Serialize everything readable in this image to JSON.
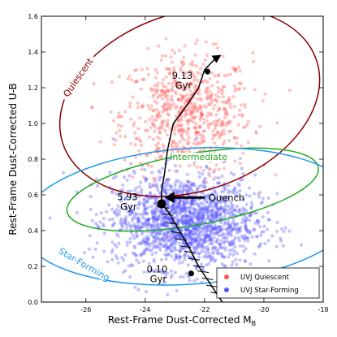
{
  "chart_data": {
    "type": "scatter",
    "xlabel": "Rest-Frame Dust-Corrected M",
    "xlabel_sub": "B",
    "ylabel": "Rest-Frame Dust-Corrected U-B",
    "xlim": [
      -27.5,
      -18.0
    ],
    "ylim": [
      0.0,
      1.6
    ],
    "x_inverted": false,
    "xticks": [
      "-26",
      "-24",
      "-22",
      "-20",
      "-18"
    ],
    "xtick_values": [
      -26,
      -24,
      -22,
      -20,
      -18
    ],
    "yticks": [
      "0.0",
      "0.2",
      "0.4",
      "0.6",
      "0.8",
      "1.0",
      "1.2",
      "1.4",
      "1.6"
    ],
    "ytick_values": [
      0.0,
      0.2,
      0.4,
      0.6,
      0.8,
      1.0,
      1.2,
      1.4,
      1.6
    ],
    "grid": false,
    "legend_position": "bottom-right",
    "series": [
      {
        "name": "UVJ Quiescent",
        "color": "#ff5555",
        "kind": "scatter-cloud",
        "approx_count": 700,
        "center": [
          -22.6,
          1.05
        ],
        "spread": [
          1.1,
          0.17
        ]
      },
      {
        "name": "UVJ Star-Forming",
        "color": "#5555ff",
        "kind": "scatter-cloud",
        "approx_count": 1700,
        "center": [
          -22.7,
          0.45
        ],
        "spread": [
          1.2,
          0.13
        ]
      }
    ],
    "regions": [
      {
        "label": "Quiescent",
        "color": "#8b0000",
        "center": [
          -22.5,
          1.12
        ],
        "radii": [
          4.5,
          0.5
        ],
        "rotation_deg": 18
      },
      {
        "label": "Intermediate",
        "color": "#22aa22",
        "center": [
          -22.4,
          0.63
        ],
        "radii": [
          4.3,
          0.2
        ],
        "rotation_deg": 10
      },
      {
        "label": "Star-Forming",
        "color": "#2299ee",
        "center": [
          -22.5,
          0.48
        ],
        "radii": [
          5.7,
          0.38
        ],
        "rotation_deg": 4
      }
    ],
    "track": {
      "color": "#000000",
      "points": [
        [
          -21.4,
          0.0
        ],
        [
          -21.8,
          0.1
        ],
        [
          -22.2,
          0.2
        ],
        [
          -22.5,
          0.3
        ],
        [
          -22.85,
          0.4
        ],
        [
          -23.2,
          0.5
        ],
        [
          -23.45,
          0.55
        ],
        [
          -23.45,
          0.62
        ],
        [
          -23.35,
          0.72
        ],
        [
          -23.25,
          0.85
        ],
        [
          -23.05,
          1.0
        ],
        [
          -22.6,
          1.1
        ],
        [
          -22.2,
          1.2
        ],
        [
          -22.0,
          1.3
        ],
        [
          -21.6,
          1.37
        ]
      ],
      "ticks": [
        -21.6,
        -21.75,
        -21.9,
        -22.05,
        -22.2,
        -22.35,
        -22.5,
        -22.65,
        -22.8,
        -22.95,
        -23.1,
        -23.25,
        -23.4
      ],
      "ticks_y": [
        0.05,
        0.09,
        0.13,
        0.17,
        0.2,
        0.24,
        0.28,
        0.31,
        0.35,
        0.39,
        0.44,
        0.49,
        0.53
      ]
    },
    "annotations": [
      {
        "text": "9.13",
        "line2": "Gyr",
        "point": [
          -21.9,
          1.29
        ],
        "label_at": [
          -23.1,
          1.25
        ]
      },
      {
        "text": "5.93",
        "line2": "Gyr",
        "point": [
          -23.45,
          0.55
        ],
        "label_at": [
          -24.95,
          0.57
        ]
      },
      {
        "text": "0.10",
        "line2": "Gyr",
        "point": [
          -22.45,
          0.16
        ],
        "label_at": [
          -23.95,
          0.165
        ]
      },
      {
        "text": "Quench",
        "arrow_from": [
          -22.0,
          0.585
        ],
        "arrow_to": [
          -23.35,
          0.585
        ]
      }
    ]
  }
}
